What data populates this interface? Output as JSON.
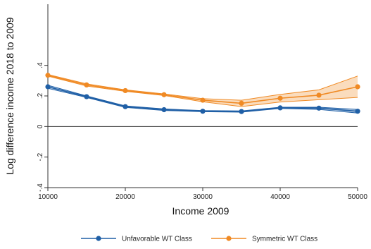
{
  "chart_data": {
    "type": "line",
    "title": "",
    "xlabel": "Income 2009",
    "ylabel": "Log difference income 2018 to 2009",
    "x": [
      10000,
      15000,
      20000,
      25000,
      30000,
      35000,
      40000,
      45000,
      50000
    ],
    "x_ticks": [
      10000,
      20000,
      30000,
      40000,
      50000
    ],
    "x_tick_labels": [
      "10000",
      "20000",
      "30000",
      "40000",
      "50000"
    ],
    "y_ticks": [
      -0.4,
      -0.2,
      0,
      0.2,
      0.4
    ],
    "y_tick_labels": [
      "-.4",
      "-.2",
      "0",
      ".2",
      ".4"
    ],
    "xlim": [
      10000,
      50000
    ],
    "ylim": [
      -0.4,
      0.8
    ],
    "reference_line_y": 0,
    "grid": false,
    "legend_position": "bottom",
    "series": [
      {
        "name": "Unfavorable WT Class",
        "color": "#1f5fa6",
        "values": [
          0.26,
          0.195,
          0.13,
          0.11,
          0.1,
          0.098,
          0.122,
          0.12,
          0.1
        ],
        "lower": [
          0.25,
          0.19,
          0.125,
          0.105,
          0.097,
          0.094,
          0.118,
          0.112,
          0.088
        ],
        "upper": [
          0.27,
          0.2,
          0.135,
          0.115,
          0.104,
          0.102,
          0.126,
          0.126,
          0.112
        ]
      },
      {
        "name": "Symmetric WT Class",
        "color": "#f08a24",
        "values": [
          0.335,
          0.272,
          0.235,
          0.208,
          0.172,
          0.152,
          0.185,
          0.205,
          0.26
        ],
        "lower": [
          0.33,
          0.265,
          0.23,
          0.203,
          0.162,
          0.13,
          0.16,
          0.175,
          0.19
        ],
        "upper": [
          0.34,
          0.279,
          0.24,
          0.213,
          0.182,
          0.172,
          0.21,
          0.24,
          0.33
        ]
      }
    ]
  }
}
